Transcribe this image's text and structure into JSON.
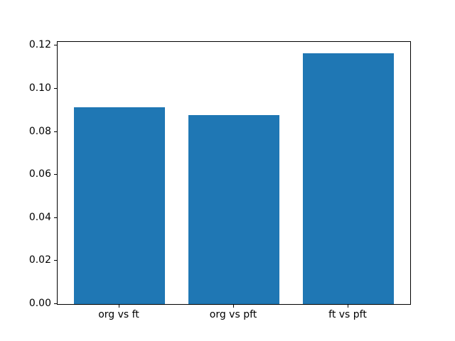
{
  "chart_data": {
    "type": "bar",
    "title": "",
    "xlabel": "",
    "ylabel": "",
    "categories": [
      "org vs ft",
      "org vs pft",
      "ft vs pft"
    ],
    "values": [
      0.0914,
      0.0878,
      0.1164
    ],
    "yticks": [
      "0.00",
      "0.02",
      "0.04",
      "0.06",
      "0.08",
      "0.10",
      "0.12"
    ],
    "ytick_values": [
      0.0,
      0.02,
      0.04,
      0.06,
      0.08,
      0.1,
      0.12
    ],
    "ylim": [
      0,
      0.1218
    ],
    "bar_width": 0.8,
    "grid": false,
    "legend": null,
    "colors": {
      "bar": "#1f77b4",
      "axis": "#000000",
      "background": "#ffffff"
    }
  }
}
